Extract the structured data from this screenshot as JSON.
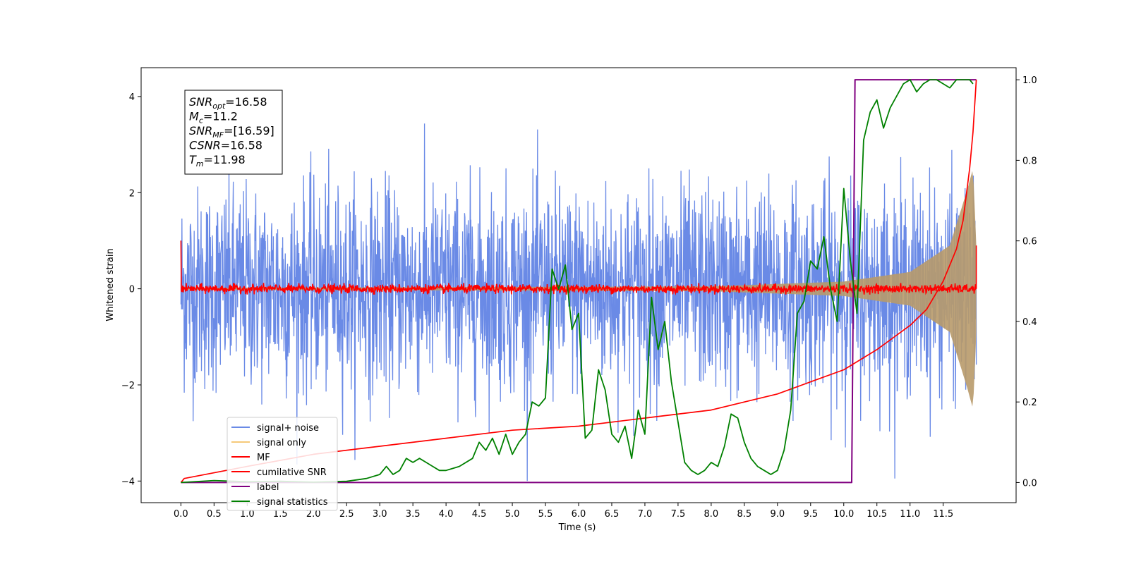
{
  "chart_data": {
    "type": "line",
    "xlabel": "Time (s)",
    "ylabel": "Whitened strain",
    "xlim": [
      -0.6,
      12.6
    ],
    "ylim": [
      -4.45,
      4.6
    ],
    "y2lim": [
      -0.05,
      1.03
    ],
    "x_ticks": [
      "0.0",
      "0.5",
      "1.0",
      "1.5",
      "2.0",
      "2.5",
      "3.0",
      "3.5",
      "4.0",
      "4.5",
      "5.0",
      "5.5",
      "6.0",
      "6.5",
      "7.0",
      "7.5",
      "8.0",
      "8.5",
      "9.0",
      "9.5",
      "10.0",
      "10.5",
      "11.0",
      "11.5"
    ],
    "y_ticks": [
      "−4",
      "−2",
      "0",
      "2",
      "4"
    ],
    "y2_ticks": [
      "0.0",
      "0.2",
      "0.4",
      "0.6",
      "0.8",
      "1.0"
    ],
    "annotation": [
      {
        "base": "SNR",
        "sub": "opt",
        "rest": "=16.58"
      },
      {
        "base": "M",
        "sub": "c",
        "rest": "=11.2"
      },
      {
        "base": "SNR",
        "sub": "MF",
        "rest": "=[16.59]"
      },
      {
        "base": "CSNR",
        "sub": "",
        "rest": "=16.58"
      },
      {
        "base": "T",
        "sub": "m",
        "rest": "=11.98"
      }
    ],
    "legend_position": "lower-left",
    "series": [
      {
        "name": "signal+ noise",
        "color": "#6a8ae6",
        "axis": "left",
        "kind": "noise",
        "amplitude_range": [
          -4,
          3.7
        ],
        "x_range": [
          0,
          12
        ]
      },
      {
        "name": "signal only",
        "color": "#f5c97a",
        "axis": "left",
        "kind": "chirp",
        "envelope": [
          [
            0,
            0.02
          ],
          [
            8,
            0.05
          ],
          [
            10,
            0.15
          ],
          [
            11,
            0.35
          ],
          [
            11.6,
            0.9
          ],
          [
            11.85,
            2.0
          ],
          [
            11.95,
            2.5
          ],
          [
            12,
            0.9
          ]
        ]
      },
      {
        "name": "MF",
        "color": "#ff0000",
        "axis": "left",
        "kind": "noise",
        "amplitude_range": [
          -0.12,
          0.12
        ],
        "spikes": [
          [
            0,
            1.0
          ],
          [
            12,
            0.9
          ]
        ]
      },
      {
        "name": "cumilative SNR",
        "color": "#ff0000",
        "axis": "right",
        "x": [
          0,
          0.05,
          1,
          2,
          3,
          4,
          5,
          6,
          7,
          8,
          8.5,
          9,
          9.5,
          10,
          10.5,
          11,
          11.25,
          11.5,
          11.7,
          11.8,
          11.9,
          11.95,
          12
        ],
        "y": [
          0,
          0.01,
          0.04,
          0.07,
          0.09,
          0.11,
          0.13,
          0.14,
          0.16,
          0.18,
          0.2,
          0.22,
          0.25,
          0.28,
          0.33,
          0.39,
          0.43,
          0.5,
          0.58,
          0.65,
          0.78,
          0.87,
          1.0
        ]
      },
      {
        "name": "label",
        "color": "#800080",
        "axis": "right",
        "x": [
          0,
          10.12,
          10.17,
          12
        ],
        "y": [
          0,
          0,
          1,
          1
        ]
      },
      {
        "name": "signal statistics",
        "color": "#008000",
        "axis": "right",
        "x": [
          0,
          0.5,
          1.0,
          1.5,
          2.0,
          2.5,
          2.8,
          3.0,
          3.1,
          3.2,
          3.3,
          3.4,
          3.5,
          3.6,
          3.7,
          3.8,
          3.9,
          4.0,
          4.2,
          4.4,
          4.5,
          4.6,
          4.7,
          4.8,
          4.9,
          5.0,
          5.1,
          5.2,
          5.3,
          5.4,
          5.5,
          5.6,
          5.7,
          5.8,
          5.9,
          6.0,
          6.1,
          6.2,
          6.3,
          6.4,
          6.5,
          6.6,
          6.7,
          6.8,
          6.9,
          7.0,
          7.1,
          7.2,
          7.3,
          7.4,
          7.5,
          7.6,
          7.7,
          7.8,
          7.9,
          8.0,
          8.1,
          8.2,
          8.3,
          8.4,
          8.5,
          8.6,
          8.7,
          8.8,
          8.9,
          9.0,
          9.1,
          9.2,
          9.3,
          9.4,
          9.5,
          9.6,
          9.7,
          9.8,
          9.9,
          10.0,
          10.1,
          10.2,
          10.3,
          10.4,
          10.5,
          10.6,
          10.7,
          10.8,
          10.9,
          11.0,
          11.1,
          11.2,
          11.3,
          11.4,
          11.5,
          11.6,
          11.7,
          11.8,
          11.9,
          11.95
        ],
        "y": [
          0,
          0.005,
          0.002,
          0.003,
          0.001,
          0.003,
          0.01,
          0.02,
          0.04,
          0.02,
          0.03,
          0.06,
          0.05,
          0.06,
          0.05,
          0.04,
          0.03,
          0.03,
          0.04,
          0.06,
          0.1,
          0.08,
          0.11,
          0.07,
          0.12,
          0.07,
          0.1,
          0.12,
          0.2,
          0.19,
          0.21,
          0.53,
          0.48,
          0.54,
          0.38,
          0.42,
          0.11,
          0.13,
          0.28,
          0.23,
          0.12,
          0.1,
          0.14,
          0.06,
          0.18,
          0.12,
          0.46,
          0.33,
          0.4,
          0.25,
          0.15,
          0.05,
          0.03,
          0.02,
          0.03,
          0.05,
          0.04,
          0.09,
          0.17,
          0.16,
          0.1,
          0.06,
          0.04,
          0.03,
          0.02,
          0.03,
          0.08,
          0.18,
          0.42,
          0.45,
          0.55,
          0.53,
          0.61,
          0.48,
          0.4,
          0.73,
          0.55,
          0.42,
          0.85,
          0.92,
          0.95,
          0.88,
          0.93,
          0.96,
          0.99,
          1.0,
          0.97,
          0.99,
          1.0,
          1.0,
          0.99,
          0.98,
          1.0,
          1.0,
          1.0,
          0.99
        ]
      }
    ]
  }
}
